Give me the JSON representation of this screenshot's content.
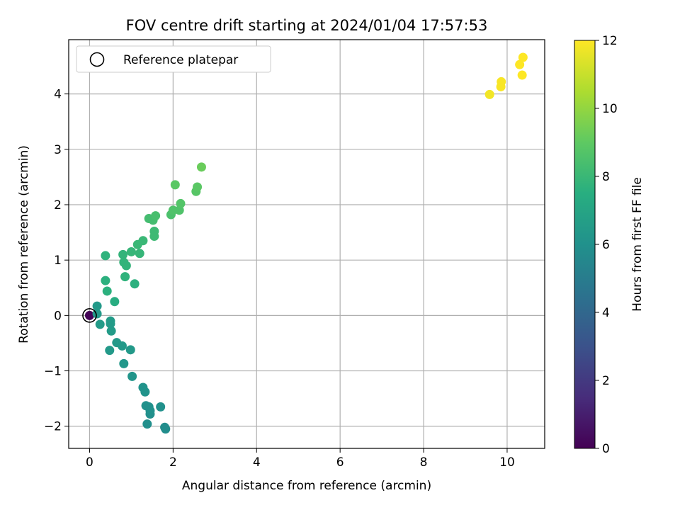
{
  "chart_data": {
    "type": "scatter",
    "title": "FOV centre drift starting at 2024/01/04 17:57:53",
    "xlabel": "Angular distance from reference (arcmin)",
    "ylabel": "Rotation from reference (arcmin)",
    "xlim": [
      -0.5,
      10.9
    ],
    "ylim": [
      -2.4,
      4.98
    ],
    "xticks": [
      0,
      2,
      4,
      6,
      8,
      10
    ],
    "yticks": [
      -2,
      -1,
      0,
      1,
      2,
      3,
      4
    ],
    "grid": true,
    "legend": {
      "placement": "top-left",
      "entries": [
        "Reference platepar"
      ]
    },
    "reference_point": {
      "x": 0,
      "y": 0
    },
    "colorbar": {
      "label": "Hours from first FF file",
      "range": [
        0,
        12
      ],
      "ticks": [
        0,
        2,
        4,
        6,
        8,
        10,
        12
      ],
      "colormap": "viridis"
    },
    "points": [
      {
        "x": 0.0,
        "y": 0.0,
        "c": 0.1
      },
      {
        "x": 0.18,
        "y": 0.17,
        "c": 6.4
      },
      {
        "x": 0.18,
        "y": 0.03,
        "c": 6.4
      },
      {
        "x": 0.25,
        "y": -0.16,
        "c": 6.5
      },
      {
        "x": 0.38,
        "y": 1.08,
        "c": 7.7
      },
      {
        "x": 0.38,
        "y": 0.63,
        "c": 7.6
      },
      {
        "x": 0.42,
        "y": 0.44,
        "c": 7.6
      },
      {
        "x": 0.5,
        "y": -0.1,
        "c": 6.5
      },
      {
        "x": 0.5,
        "y": -0.15,
        "c": 6.5
      },
      {
        "x": 0.52,
        "y": -0.28,
        "c": 6.5
      },
      {
        "x": 0.48,
        "y": -0.63,
        "c": 6.4
      },
      {
        "x": 0.6,
        "y": 0.25,
        "c": 7.4
      },
      {
        "x": 0.65,
        "y": -0.49,
        "c": 6.4
      },
      {
        "x": 0.78,
        "y": -0.55,
        "c": 6.4
      },
      {
        "x": 0.8,
        "y": 1.1,
        "c": 7.8
      },
      {
        "x": 0.82,
        "y": 0.96,
        "c": 7.8
      },
      {
        "x": 0.88,
        "y": 0.9,
        "c": 7.8
      },
      {
        "x": 0.82,
        "y": -0.87,
        "c": 6.3
      },
      {
        "x": 0.85,
        "y": 0.7,
        "c": 7.7
      },
      {
        "x": 0.98,
        "y": -0.62,
        "c": 6.4
      },
      {
        "x": 1.0,
        "y": 1.15,
        "c": 7.9
      },
      {
        "x": 1.02,
        "y": -1.1,
        "c": 6.2
      },
      {
        "x": 1.08,
        "y": 0.57,
        "c": 7.6
      },
      {
        "x": 1.15,
        "y": 1.28,
        "c": 8.0
      },
      {
        "x": 1.2,
        "y": 1.12,
        "c": 7.9
      },
      {
        "x": 1.28,
        "y": 1.35,
        "c": 8.0
      },
      {
        "x": 1.28,
        "y": -1.3,
        "c": 6.1
      },
      {
        "x": 1.33,
        "y": -1.38,
        "c": 6.1
      },
      {
        "x": 1.35,
        "y": -1.63,
        "c": 6.0
      },
      {
        "x": 1.38,
        "y": -1.96,
        "c": 5.9
      },
      {
        "x": 1.42,
        "y": 1.75,
        "c": 8.3
      },
      {
        "x": 1.42,
        "y": -1.65,
        "c": 6.0
      },
      {
        "x": 1.45,
        "y": -1.78,
        "c": 5.9
      },
      {
        "x": 1.45,
        "y": -1.72,
        "c": 6.0
      },
      {
        "x": 1.52,
        "y": 1.72,
        "c": 8.3
      },
      {
        "x": 1.55,
        "y": 1.52,
        "c": 8.1
      },
      {
        "x": 1.55,
        "y": 1.43,
        "c": 8.1
      },
      {
        "x": 1.58,
        "y": 1.8,
        "c": 8.4
      },
      {
        "x": 1.7,
        "y": -1.65,
        "c": 6.0
      },
      {
        "x": 1.8,
        "y": -2.02,
        "c": 5.8
      },
      {
        "x": 1.82,
        "y": -2.05,
        "c": 5.8
      },
      {
        "x": 1.95,
        "y": 1.82,
        "c": 8.5
      },
      {
        "x": 2.0,
        "y": 1.9,
        "c": 8.6
      },
      {
        "x": 2.05,
        "y": 2.36,
        "c": 8.9
      },
      {
        "x": 2.15,
        "y": 1.9,
        "c": 8.6
      },
      {
        "x": 2.18,
        "y": 2.02,
        "c": 8.7
      },
      {
        "x": 2.55,
        "y": 2.24,
        "c": 8.8
      },
      {
        "x": 2.58,
        "y": 2.32,
        "c": 8.9
      },
      {
        "x": 2.68,
        "y": 2.68,
        "c": 9.2
      },
      {
        "x": 9.58,
        "y": 3.99,
        "c": 11.8
      },
      {
        "x": 9.85,
        "y": 4.13,
        "c": 11.9
      },
      {
        "x": 9.86,
        "y": 4.22,
        "c": 11.9
      },
      {
        "x": 10.3,
        "y": 4.53,
        "c": 12.0
      },
      {
        "x": 10.36,
        "y": 4.34,
        "c": 12.0
      },
      {
        "x": 10.38,
        "y": 4.66,
        "c": 12.0
      }
    ]
  }
}
